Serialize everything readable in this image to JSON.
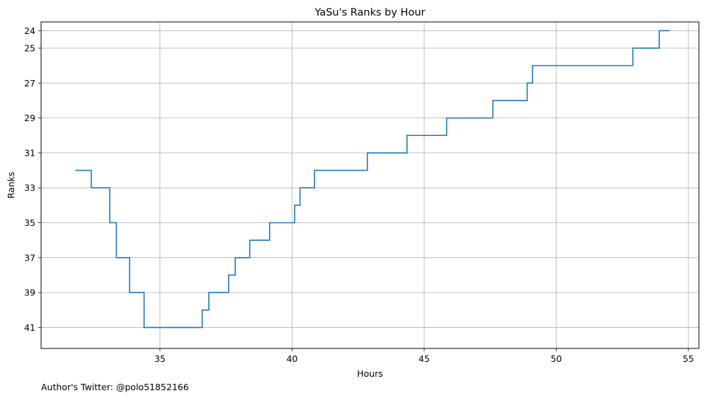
{
  "chart_data": {
    "type": "line",
    "drawstyle": "steps-post",
    "title": "YaSu's Ranks by Hour",
    "xlabel": "Hours",
    "ylabel": "Ranks",
    "xlim": [
      30.5,
      55.4
    ],
    "ylim": [
      42.2,
      23.5
    ],
    "y_inverted": true,
    "grid": true,
    "x_ticks": [
      35,
      40,
      45,
      50,
      55
    ],
    "x_tick_labels": [
      "35",
      "40",
      "45",
      "50",
      "55"
    ],
    "y_ticks": [
      24,
      25,
      27,
      29,
      31,
      33,
      35,
      37,
      39,
      41
    ],
    "y_tick_labels": [
      "24",
      "25",
      "27",
      "29",
      "31",
      "33",
      "35",
      "37",
      "39",
      "41"
    ],
    "line_color": "#1f77b4",
    "series": [
      {
        "x": [
          31.8,
          32.4,
          33.1,
          33.35,
          33.85,
          34.4,
          36.6,
          36.85,
          37.6,
          37.85,
          38.4,
          39.15,
          40.1,
          40.3,
          40.85,
          42.85,
          44.35,
          45.85,
          47.6,
          48.9,
          49.1,
          52.9,
          53.9,
          54.3
        ],
        "y": [
          32,
          33,
          35,
          37,
          39,
          41,
          40,
          39,
          38,
          37,
          36,
          35,
          34,
          33,
          32,
          31,
          30,
          29,
          28,
          27,
          26,
          25,
          24,
          24
        ]
      }
    ]
  },
  "footer": {
    "author_note": "Author's Twitter: @polo51852166"
  }
}
